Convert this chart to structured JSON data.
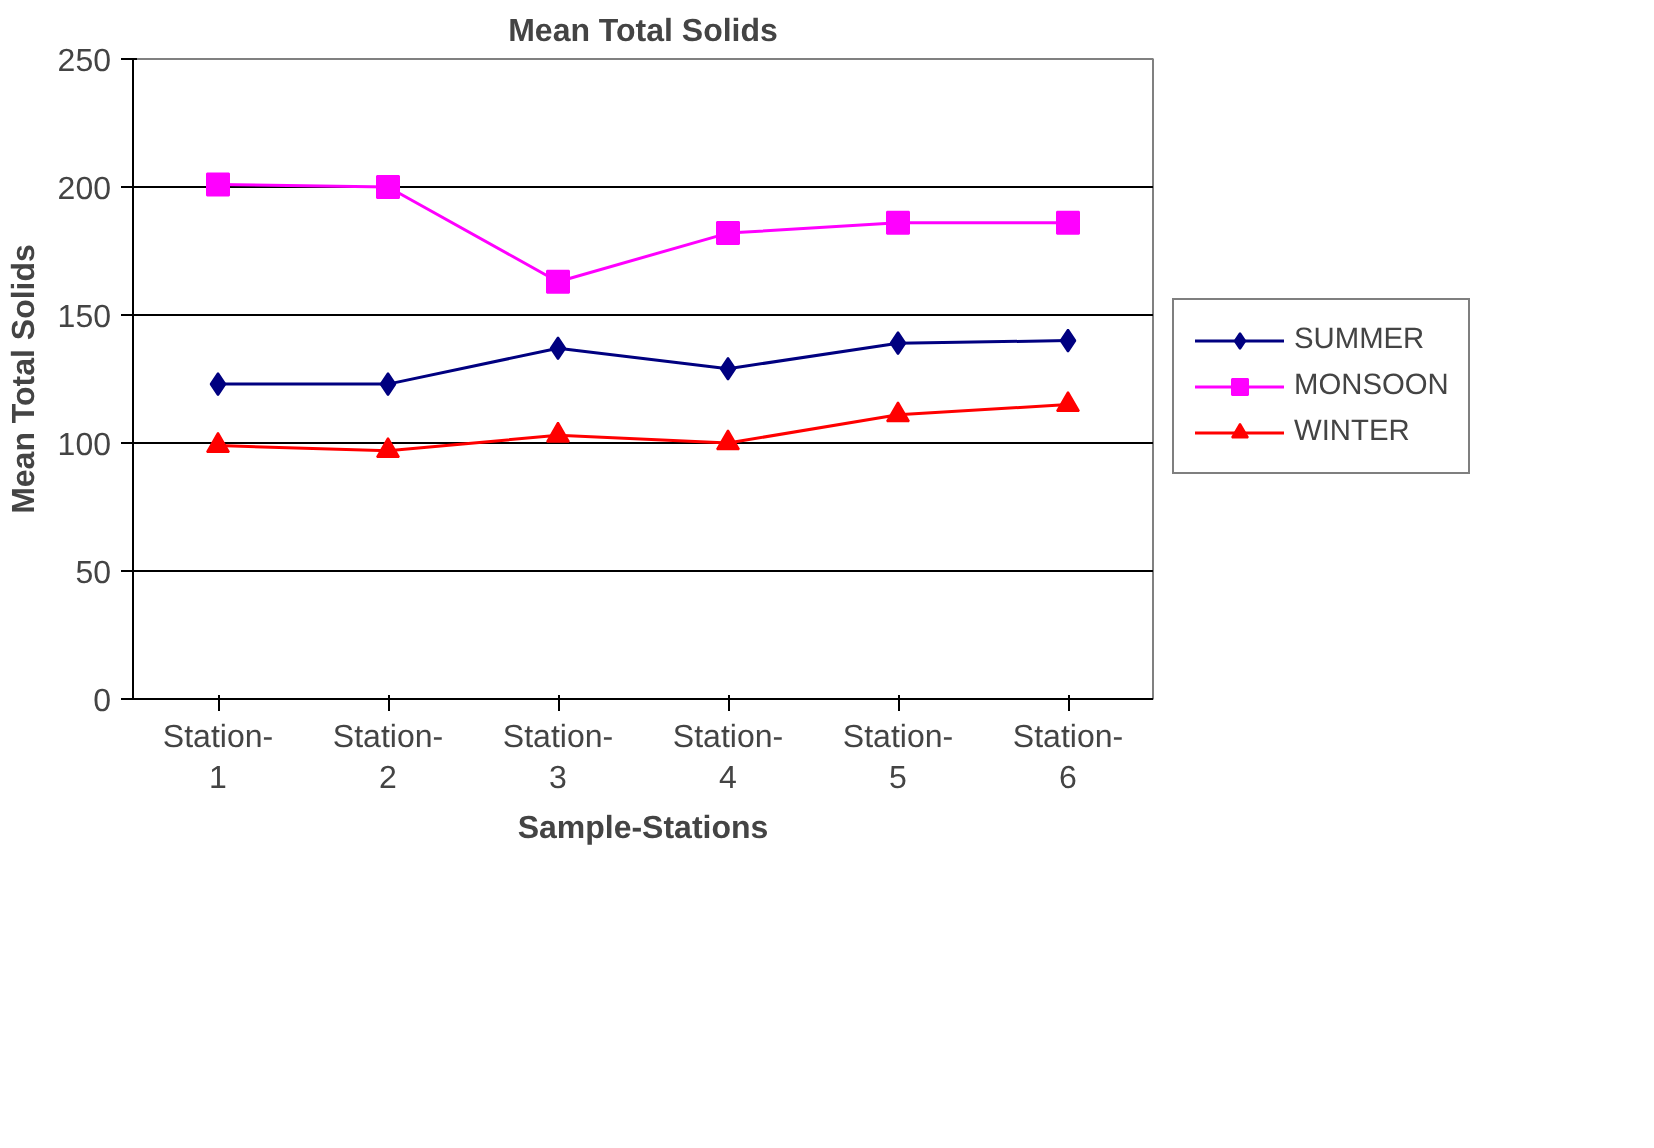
{
  "chart_data": {
    "type": "line",
    "title": "Mean Total Solids",
    "xlabel": "Sample-Stations",
    "ylabel": "Mean Total Solids",
    "categories": [
      "Station-\n1",
      "Station-\n2",
      "Station-\n3",
      "Station-\n4",
      "Station-\n5",
      "Station-\n6"
    ],
    "series": [
      {
        "name": "SUMMER",
        "color": "#000080",
        "marker": "diamond",
        "values": [
          123,
          123,
          137,
          129,
          139,
          140
        ]
      },
      {
        "name": "MONSOON",
        "color": "#ff00ff",
        "marker": "square",
        "values": [
          201,
          200,
          163,
          182,
          186,
          186
        ]
      },
      {
        "name": "WINTER",
        "color": "#ff0000",
        "marker": "triangle",
        "values": [
          99,
          97,
          103,
          100,
          111,
          115
        ]
      }
    ],
    "ylim": [
      0,
      250
    ],
    "yticks": [
      0,
      50,
      100,
      150,
      200,
      250
    ],
    "grid": "y",
    "legend": "right"
  }
}
